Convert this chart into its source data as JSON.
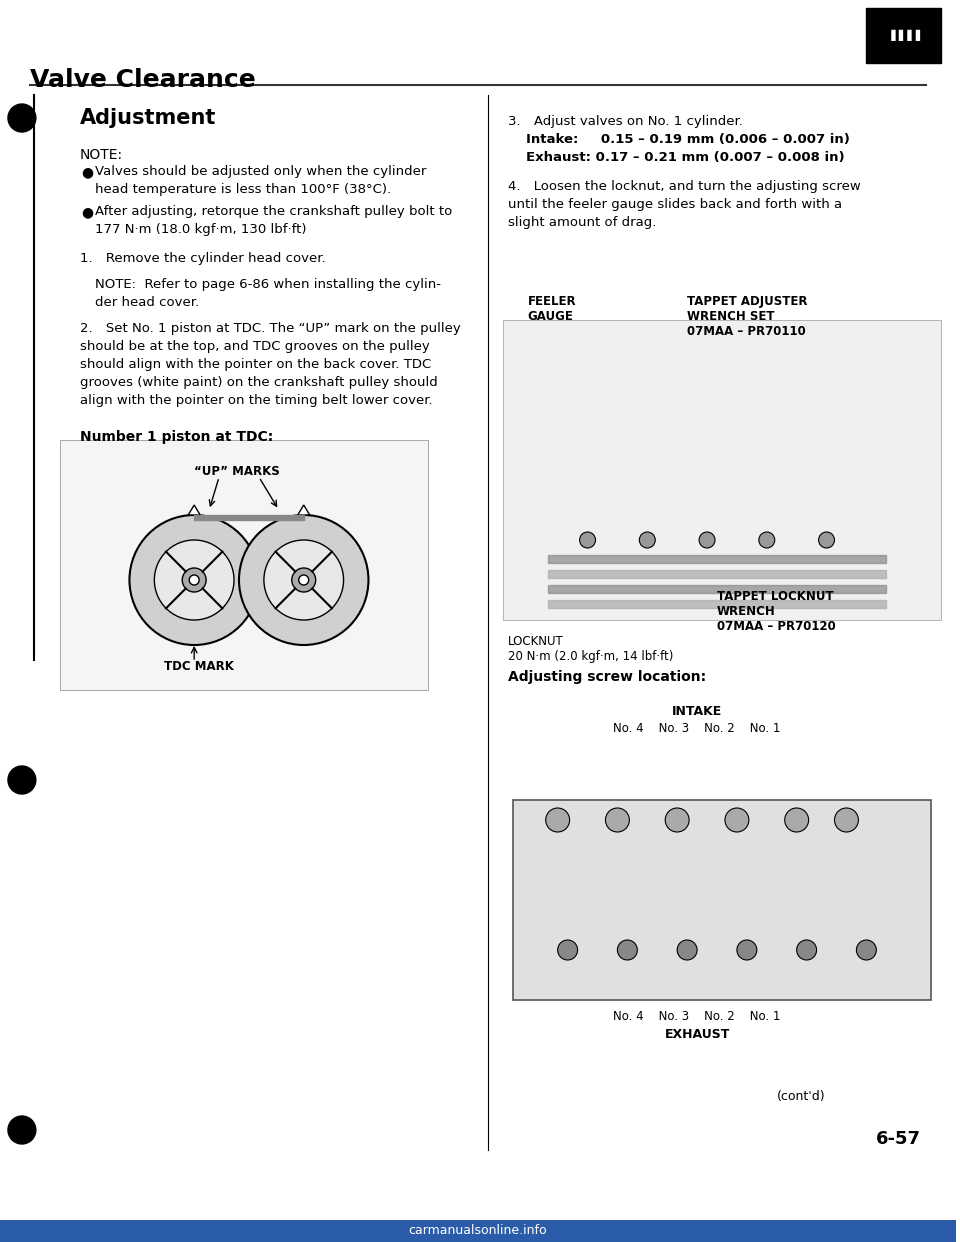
{
  "page_bg": "#ffffff",
  "title": "Valve Clearance",
  "section_title": "Adjustment",
  "note_label": "NOTE:",
  "bullet1": "Valves should be adjusted only when the cylinder\nhead temperature is less than 100°F (38°C).",
  "bullet2": "After adjusting, retorque the crankshaft pulley bolt to\n177 N·m (18.0 kgf·m, 130 lbf·ft)",
  "step1": "1. Remove the cylinder head cover.",
  "step1_note": "NOTE:  Refer to page 6-86 when installing the cylin-\nder head cover.",
  "step2_title": "2. Set No. 1 piston at TDC. The “UP” mark on the pulley\nshould be at the top, and TDC grooves on the pulley\nshould align with the pointer on the back cover. TDC\ngrooves (white paint) on the crankshaft pulley should\nalign with the pointer on the timing belt lower cover.",
  "num1_piston": "Number 1 piston at TDC:",
  "up_marks_label": "“UP” MARKS",
  "tdc_mark_label": "TDC MARK",
  "step3_title": "3. Adjust valves on No. 1 cylinder.",
  "step3_intake": "Intake:   0.15 – 0.19 mm (0.006 – 0.007 in)",
  "step3_exhaust": "Exhaust: 0.17 – 0.21 mm (0.007 – 0.008 in)",
  "step4": "4. Loosen the locknut, and turn the adjusting screw\nuntil the feeler gauge slides back and forth with a\nslight amount of drag.",
  "feeler_gauge_label": "FEELER\nGAUGE",
  "tappet_adj_label": "TAPPET ADJUSTER\nWRENCH SET\n07MAA – PR70110",
  "tappet_lock_label": "TAPPET LOCKNUT\nWRENCH\n07MAA – PR70120",
  "locknut_label": "LOCKNUT\n20 N·m (2.0 kgf·m, 14 lbf·ft)",
  "adj_screw_loc": "Adjusting screw location:",
  "intake_label": "INTAKE",
  "intake_nos": "No. 4    No. 3    No. 2    No. 1",
  "exhaust_label": "EXHAUST",
  "exhaust_nos": "No. 4    No. 3    No. 2    No. 1",
  "page_num": "6-57",
  "contd": "(cont'd)",
  "watermark": "carmanualsonline.info",
  "text_color": "#1a1a1a",
  "title_color": "#000000",
  "line_color": "#000000"
}
